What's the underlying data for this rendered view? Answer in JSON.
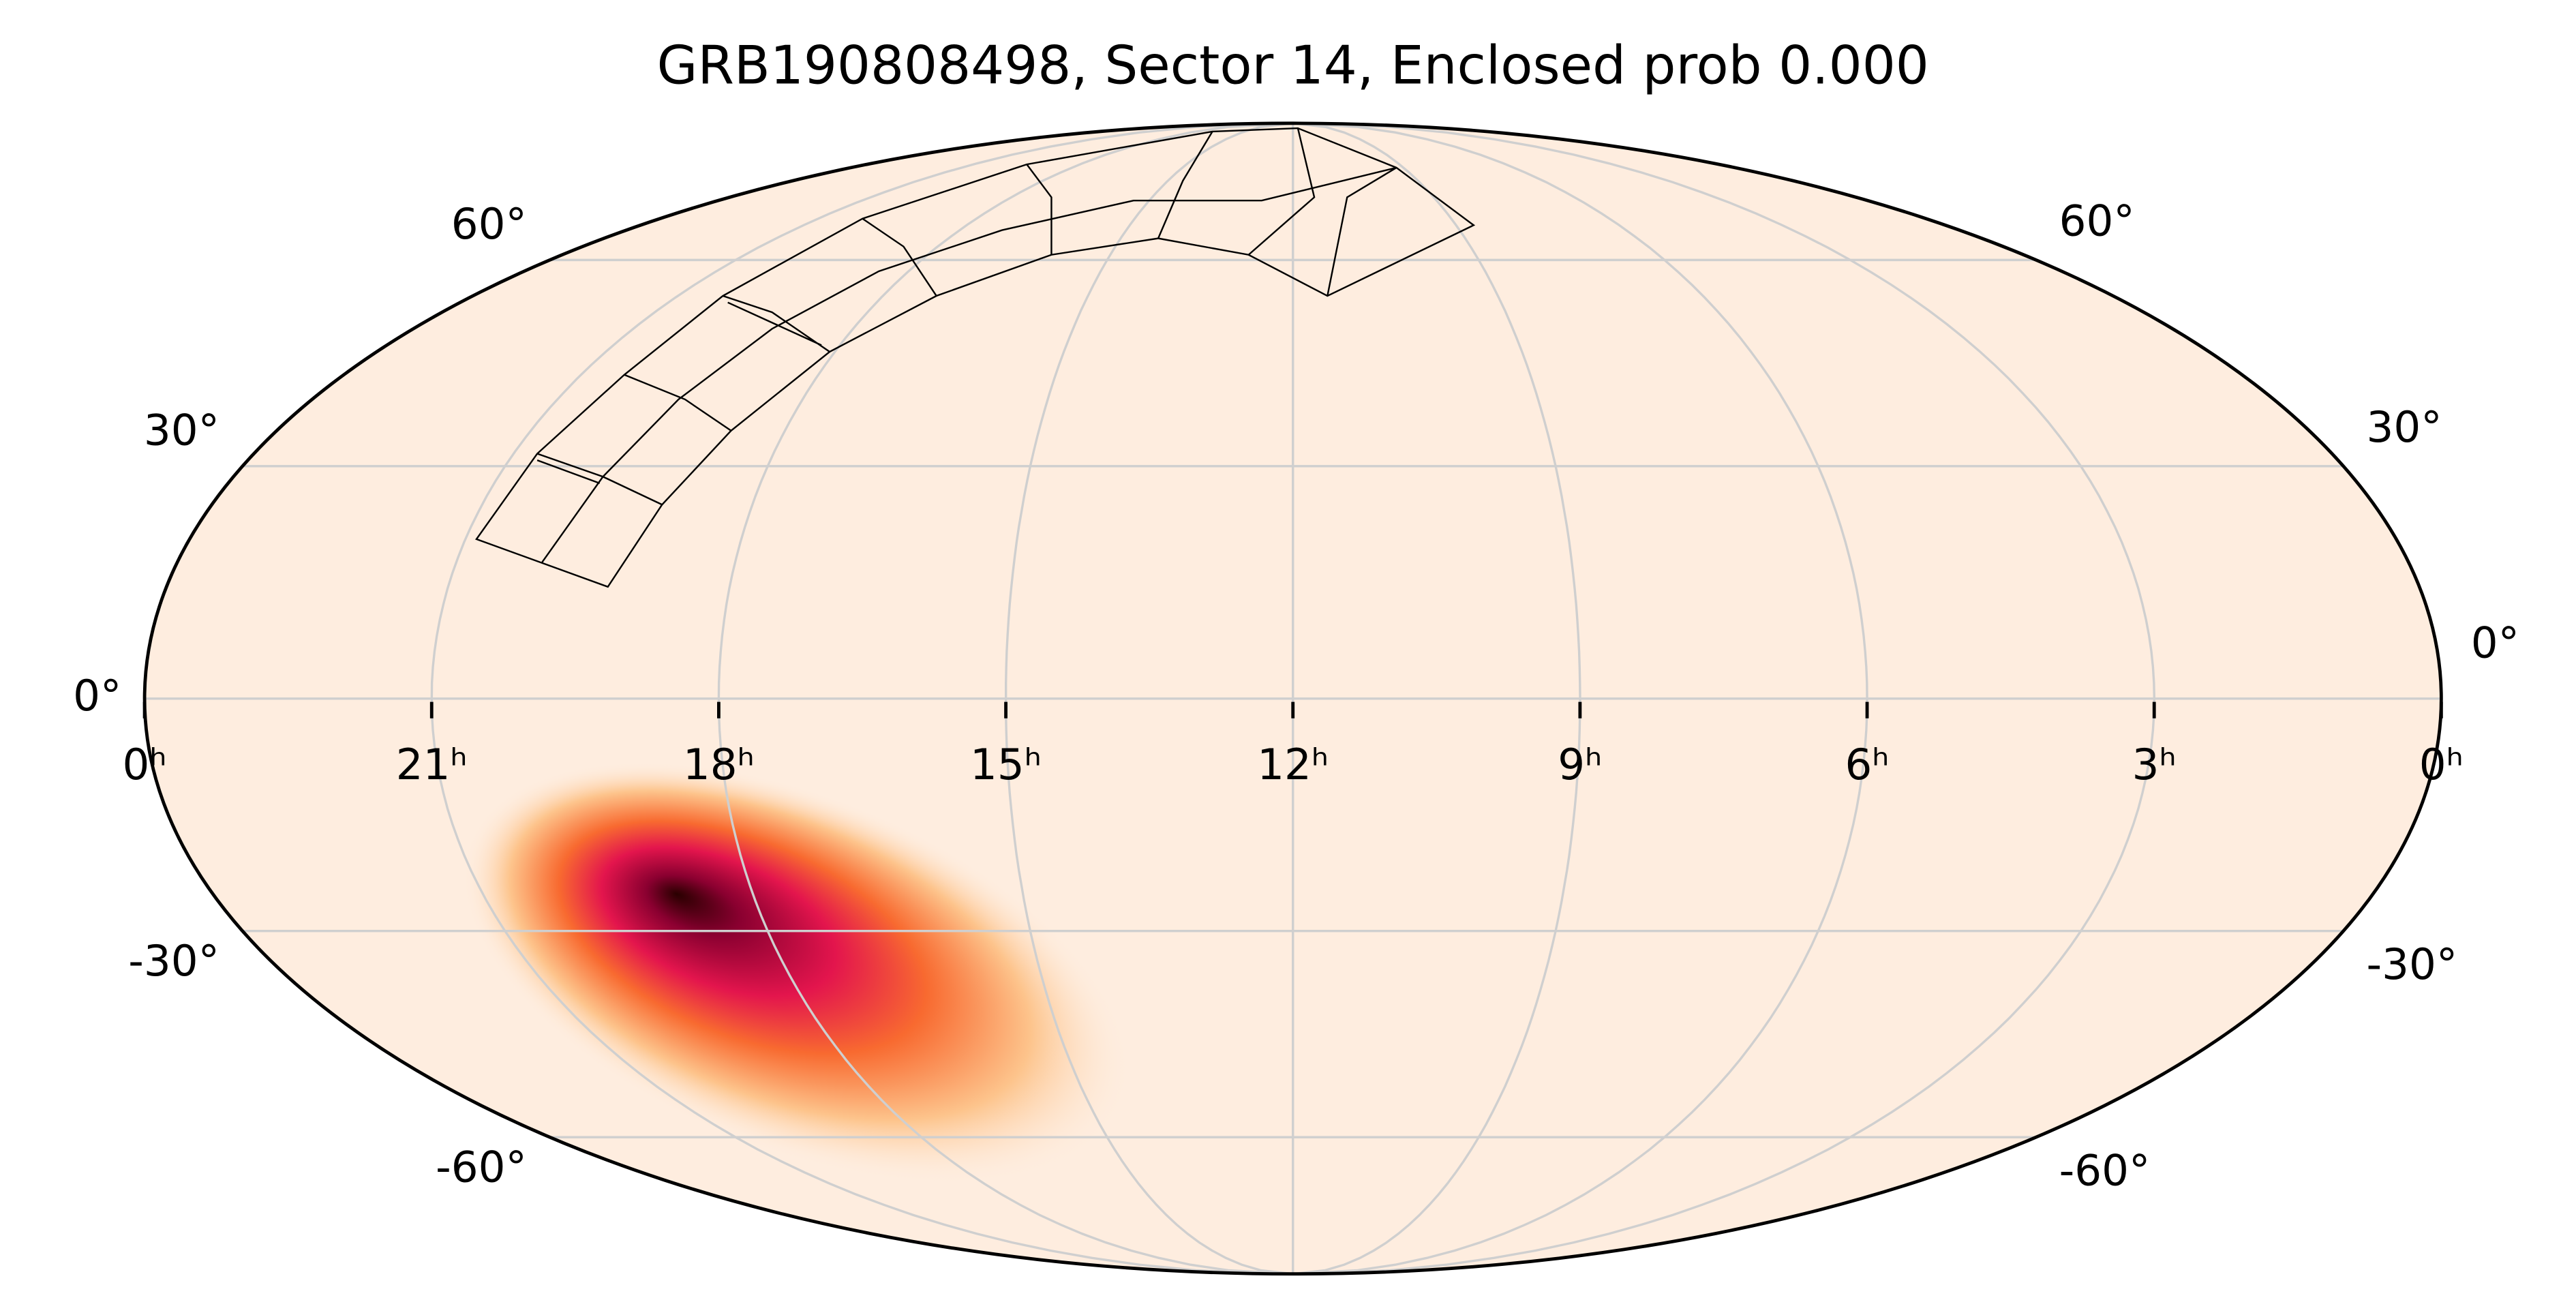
{
  "chart_data": {
    "type": "skymap",
    "title": "GRB190808498, Sector 14, Enclosed prob 0.000",
    "xlim": [
      24,
      0
    ],
    "xticks": [
      {
        "value": 24,
        "label": "0ʰ"
      },
      {
        "value": 21,
        "label": "21ʰ"
      },
      {
        "value": 18,
        "label": "18ʰ"
      },
      {
        "value": 15,
        "label": "15ʰ"
      },
      {
        "value": 12,
        "label": "12ʰ"
      },
      {
        "value": 9,
        "label": "9ʰ"
      },
      {
        "value": 6,
        "label": "6ʰ"
      },
      {
        "value": 3,
        "label": "3ʰ"
      },
      {
        "value": 0,
        "label": "0ʰ"
      }
    ],
    "ylim": [
      -90,
      90
    ],
    "yticks": [
      {
        "value": 60,
        "label": "60°"
      },
      {
        "value": 30,
        "label": "30°"
      },
      {
        "value": 0,
        "label": "0°"
      },
      {
        "value": -30,
        "label": "-30°"
      },
      {
        "value": -60,
        "label": "-60°"
      }
    ],
    "grid": true
  }
}
